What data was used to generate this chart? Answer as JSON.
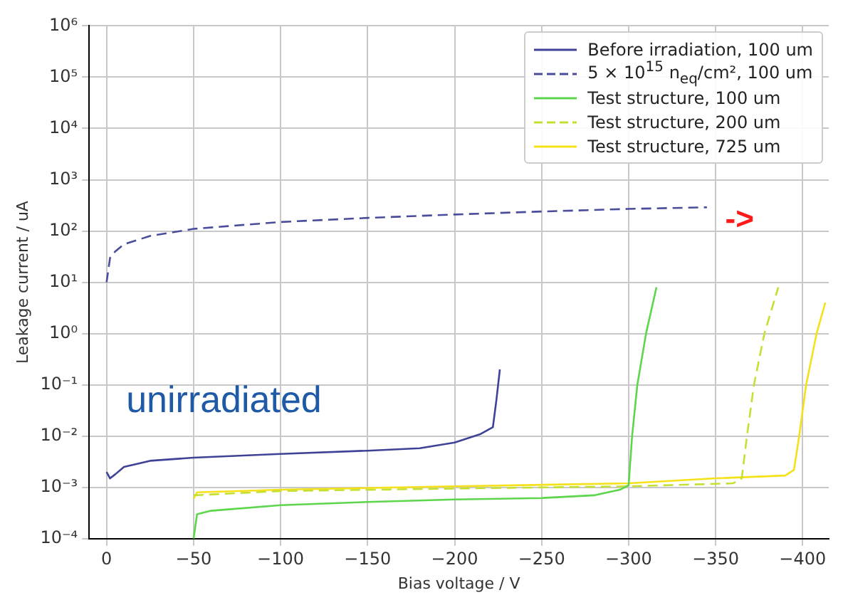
{
  "chart_data": {
    "type": "line",
    "xlabel": "Bias voltage / V",
    "ylabel": "Leakage current / uA",
    "log": "y",
    "grid": true,
    "legend": "top right",
    "marker": "none",
    "xlim": [
      10,
      -415
    ],
    "xticks": [
      0,
      {
        "value": -50,
        "label": "−50"
      },
      {
        "value": -100,
        "label": "−100"
      },
      {
        "value": -150,
        "label": "−150"
      },
      {
        "value": -200,
        "label": "−200"
      },
      {
        "value": -250,
        "label": "−250"
      },
      {
        "value": -300,
        "label": "−300"
      },
      {
        "value": -350,
        "label": "−350"
      },
      {
        "value": -400,
        "label": "−400"
      }
    ],
    "ylim": [
      0.0001,
      1000000
    ],
    "yticks": [
      {
        "value": 0.0001,
        "label": "10⁻⁴"
      },
      {
        "value": 0.001,
        "label": "10⁻³"
      },
      {
        "value": 0.01,
        "label": "10⁻²"
      },
      {
        "value": 0.1,
        "label": "10⁻¹"
      },
      {
        "value": 1,
        "label": "10⁰"
      },
      {
        "value": 10,
        "label": "10¹"
      },
      {
        "value": 100,
        "label": "10²"
      },
      {
        "value": 1000,
        "label": "10³"
      },
      {
        "value": 10000,
        "label": "10⁴"
      },
      {
        "value": 100000,
        "label": "10⁵"
      },
      {
        "value": 1000000,
        "label": "10⁶"
      }
    ],
    "series": [
      {
        "name": "Before irradiation, 100 um",
        "color": "#3f4296",
        "line_style": "solid",
        "x": [
          0,
          -2,
          -5,
          -10,
          -25,
          -50,
          -100,
          -150,
          -180,
          -200,
          -215,
          -222,
          -224,
          -226
        ],
        "values": [
          0.002,
          0.0015,
          0.0018,
          0.0025,
          0.0033,
          0.0038,
          0.0045,
          0.0052,
          0.0058,
          0.0075,
          0.011,
          0.015,
          0.05,
          0.2
        ]
      },
      {
        "name": "5 × 10$^{15}$ n$_{eq}$/cm², 100 um",
        "color": "#4a4d9c",
        "line_style": "dashed",
        "x": [
          0,
          -2,
          -5,
          -10,
          -25,
          -50,
          -100,
          -150,
          -200,
          -250,
          -300,
          -345
        ],
        "values": [
          10,
          30,
          40,
          55,
          80,
          110,
          150,
          180,
          210,
          240,
          270,
          290
        ]
      },
      {
        "name": "Test structure, 100 um",
        "color": "#5cd64a",
        "line_style": "solid",
        "x": [
          -50,
          -52,
          -60,
          -100,
          -150,
          -200,
          -250,
          -280,
          -295,
          -300,
          -302,
          -305,
          -310,
          -316
        ],
        "values": [
          0.0001,
          0.0003,
          0.00035,
          0.00045,
          0.00052,
          0.00058,
          0.00062,
          0.0007,
          0.0009,
          0.0011,
          0.01,
          0.1,
          1,
          8
        ]
      },
      {
        "name": "Test structure, 200 um",
        "color": "#c5e033",
        "line_style": "dashed",
        "x": [
          -50,
          -100,
          -200,
          -300,
          -360,
          -365,
          -368,
          -372,
          -378,
          -386
        ],
        "values": [
          0.0007,
          0.00085,
          0.00095,
          0.00105,
          0.0012,
          0.0015,
          0.01,
          0.1,
          1,
          8
        ]
      },
      {
        "name": "Test structure, 725 um",
        "color": "#f5e11a",
        "line_style": "solid",
        "x": [
          -50,
          -52,
          -100,
          -200,
          -300,
          -350,
          -390,
          -395,
          -398,
          -402,
          -408,
          -413
        ],
        "values": [
          0.0006,
          0.0008,
          0.0009,
          0.00105,
          0.0012,
          0.0015,
          0.0017,
          0.0022,
          0.01,
          0.1,
          1,
          4
        ]
      }
    ],
    "annotations": [
      "unirradiated",
      "->"
    ]
  }
}
